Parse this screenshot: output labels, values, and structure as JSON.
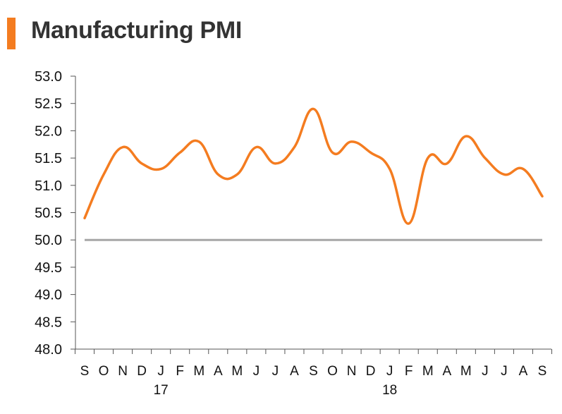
{
  "chart_data": {
    "type": "line",
    "title": "Manufacturing PMI",
    "xlabel": "",
    "ylabel": "",
    "ylim": [
      48.0,
      53.0
    ],
    "yticks": [
      "53.0",
      "52.5",
      "52.0",
      "51.5",
      "51.0",
      "50.5",
      "50.0",
      "49.5",
      "49.0",
      "48.5",
      "48.0"
    ],
    "categories": [
      "S",
      "O",
      "N",
      "D",
      "J",
      "F",
      "M",
      "A",
      "M",
      "J",
      "J",
      "A",
      "S",
      "O",
      "N",
      "D",
      "J",
      "F",
      "M",
      "A",
      "M",
      "J",
      "J",
      "A",
      "S"
    ],
    "year_labels": [
      {
        "category_index": 4,
        "label": "17"
      },
      {
        "category_index": 16,
        "label": "18"
      }
    ],
    "series": [
      {
        "name": "Manufacturing PMI",
        "values": [
          50.4,
          51.2,
          51.7,
          51.4,
          51.3,
          51.6,
          51.8,
          51.2,
          51.2,
          51.7,
          51.4,
          51.7,
          52.4,
          51.6,
          51.8,
          51.6,
          51.3,
          50.3,
          51.5,
          51.4,
          51.9,
          51.5,
          51.2,
          51.3,
          50.8
        ],
        "color": "#f47c20"
      }
    ],
    "reference_line": {
      "value": 50.0,
      "color": "#a6a6a6"
    },
    "grid": false
  },
  "colors": {
    "accent": "#f47c20",
    "reference": "#a6a6a6",
    "axis": "#555555",
    "text": "#333333"
  }
}
